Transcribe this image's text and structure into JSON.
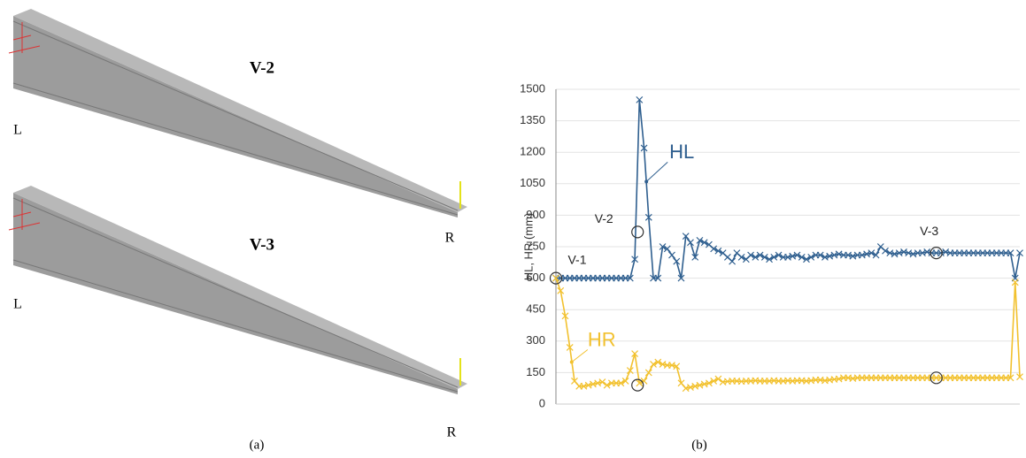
{
  "panel_a": {
    "beams": [
      {
        "label": "V-2",
        "left": "L",
        "right": "R"
      },
      {
        "label": "V-3",
        "left": "L",
        "right": "R"
      }
    ],
    "caption": "(a)"
  },
  "panel_b": {
    "caption": "(b)"
  },
  "chart_data": {
    "type": "line",
    "y_label": "HL, HR (mm)",
    "categories": [
      null,
      null,
      null,
      null,
      null,
      null,
      null,
      null,
      null,
      null,
      null,
      null,
      null,
      null,
      null,
      null,
      null,
      null,
      null,
      null,
      null,
      null,
      null,
      null,
      null,
      null,
      null,
      null,
      null,
      null,
      null,
      null,
      null,
      null,
      null,
      null,
      null,
      null,
      null,
      null,
      null,
      null,
      null,
      null,
      null,
      null,
      null,
      null,
      null,
      null,
      null,
      null,
      null,
      null,
      null,
      null,
      null,
      null,
      null,
      null,
      null,
      null,
      null,
      null,
      null,
      null,
      null,
      null,
      null,
      null,
      null,
      null,
      null,
      null,
      null,
      null,
      null,
      null,
      null,
      null,
      null,
      null,
      null,
      null,
      null,
      null,
      null,
      null,
      null,
      null,
      null,
      null,
      null,
      null,
      null,
      null,
      null,
      null,
      null,
      null,
      null
    ],
    "series": [
      {
        "name": "HL",
        "color": "#2f5f8f",
        "values": [
          600,
          600,
          600,
          600,
          600,
          600,
          600,
          600,
          600,
          600,
          600,
          600,
          600,
          600,
          600,
          600,
          600,
          690,
          1450,
          1220,
          890,
          600,
          600,
          750,
          740,
          710,
          680,
          600,
          800,
          770,
          700,
          780,
          770,
          760,
          740,
          730,
          720,
          700,
          680,
          720,
          700,
          690,
          710,
          700,
          710,
          700,
          690,
          700,
          710,
          700,
          700,
          705,
          710,
          700,
          690,
          700,
          710,
          710,
          700,
          705,
          710,
          715,
          710,
          710,
          705,
          710,
          710,
          715,
          720,
          710,
          750,
          730,
          720,
          715,
          720,
          725,
          720,
          715,
          720,
          720,
          725,
          720,
          720,
          720,
          725,
          720,
          720,
          720,
          720,
          720,
          720,
          720,
          720,
          720,
          720,
          720,
          720,
          720,
          720,
          600,
          720
        ]
      },
      {
        "name": "HR",
        "color": "#f2c12e",
        "values": [
          600,
          540,
          420,
          270,
          110,
          85,
          85,
          90,
          95,
          100,
          105,
          90,
          100,
          100,
          100,
          110,
          160,
          240,
          100,
          110,
          150,
          190,
          200,
          190,
          185,
          185,
          180,
          100,
          75,
          80,
          85,
          90,
          95,
          100,
          110,
          120,
          105,
          108,
          110,
          110,
          108,
          110,
          110,
          112,
          110,
          110,
          110,
          112,
          110,
          110,
          112,
          110,
          112,
          112,
          110,
          112,
          115,
          115,
          112,
          115,
          118,
          120,
          125,
          125,
          122,
          125,
          125,
          125,
          125,
          125,
          125,
          125,
          125,
          125,
          125,
          125,
          125,
          125,
          125,
          125,
          125,
          125,
          125,
          125,
          125,
          125,
          125,
          125,
          125,
          125,
          125,
          125,
          125,
          125,
          125,
          125,
          125,
          125,
          125,
          580,
          130
        ]
      }
    ],
    "annotations": [
      {
        "text": "V-1",
        "x": 0,
        "y": 600
      },
      {
        "text": "V-2",
        "x": 17.6,
        "y": 820
      },
      {
        "text": "V-3",
        "x": 82,
        "y": 720
      }
    ],
    "markers": [
      {
        "x": 0,
        "y": 600
      },
      {
        "x": 17.6,
        "y": 820
      },
      {
        "x": 82,
        "y": 720
      },
      {
        "x": 17.6,
        "y": 90
      },
      {
        "x": 82,
        "y": 125
      }
    ],
    "series_labels": [
      {
        "text": "HL",
        "x": 19.5,
        "y": 1060
      },
      {
        "text": "HR",
        "x": 3.4,
        "y": 200
      }
    ],
    "ylim": [
      0,
      1500
    ],
    "yticks": [
      0,
      150,
      300,
      450,
      600,
      750,
      900,
      1050,
      1200,
      1350,
      1500
    ],
    "grid": true
  }
}
